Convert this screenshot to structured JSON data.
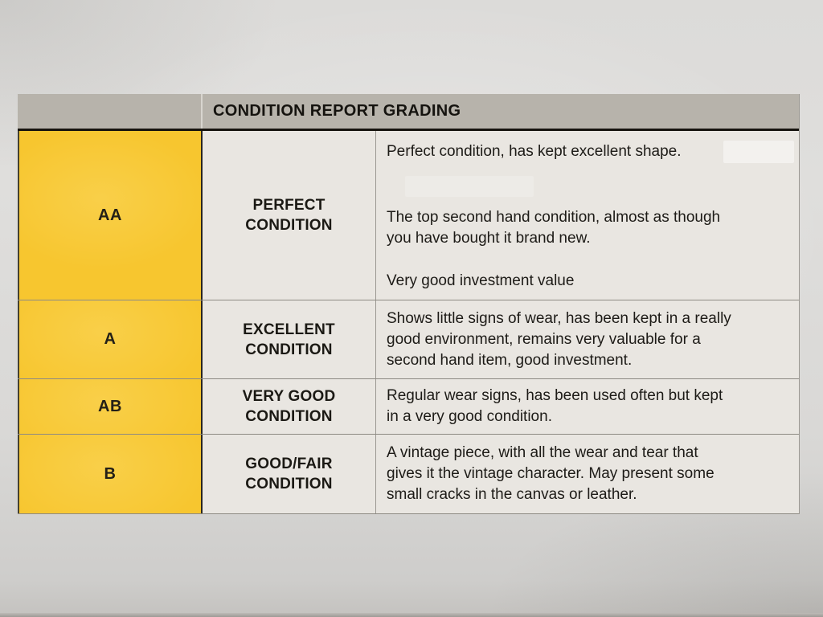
{
  "document": {
    "title": "CONDITION REPORT GRADING",
    "rows": [
      {
        "grade": "AA",
        "condition": "PERFECT CONDITION",
        "paragraphs": [
          "Perfect condition, has kept excellent shape.",
          "The top second hand condition, almost as though\nyou have bought it brand new.",
          "Very good investment value"
        ]
      },
      {
        "grade": "A",
        "condition": "EXCELLENT CONDITION",
        "paragraphs": [
          "Shows little signs of wear, has been kept in a really\ngood environment, remains very valuable for a\nsecond hand item, good investment."
        ]
      },
      {
        "grade": "AB",
        "condition": "VERY GOOD CONDITION",
        "paragraphs": [
          "Regular wear signs, has been used often but kept\nin a very good condition."
        ]
      },
      {
        "grade": "B",
        "condition": "GOOD/FAIR CONDITION",
        "paragraphs": [
          "A vintage piece, with all the wear and tear that\ngives it the vintage character. May present some\nsmall cracks in the canvas or leather."
        ]
      }
    ],
    "colors": {
      "grade_column_bg": "#f7c62f",
      "header_bg": "#b7b3ab",
      "cell_bg": "#e9e6e1",
      "text_color": "#1d1b17"
    }
  }
}
